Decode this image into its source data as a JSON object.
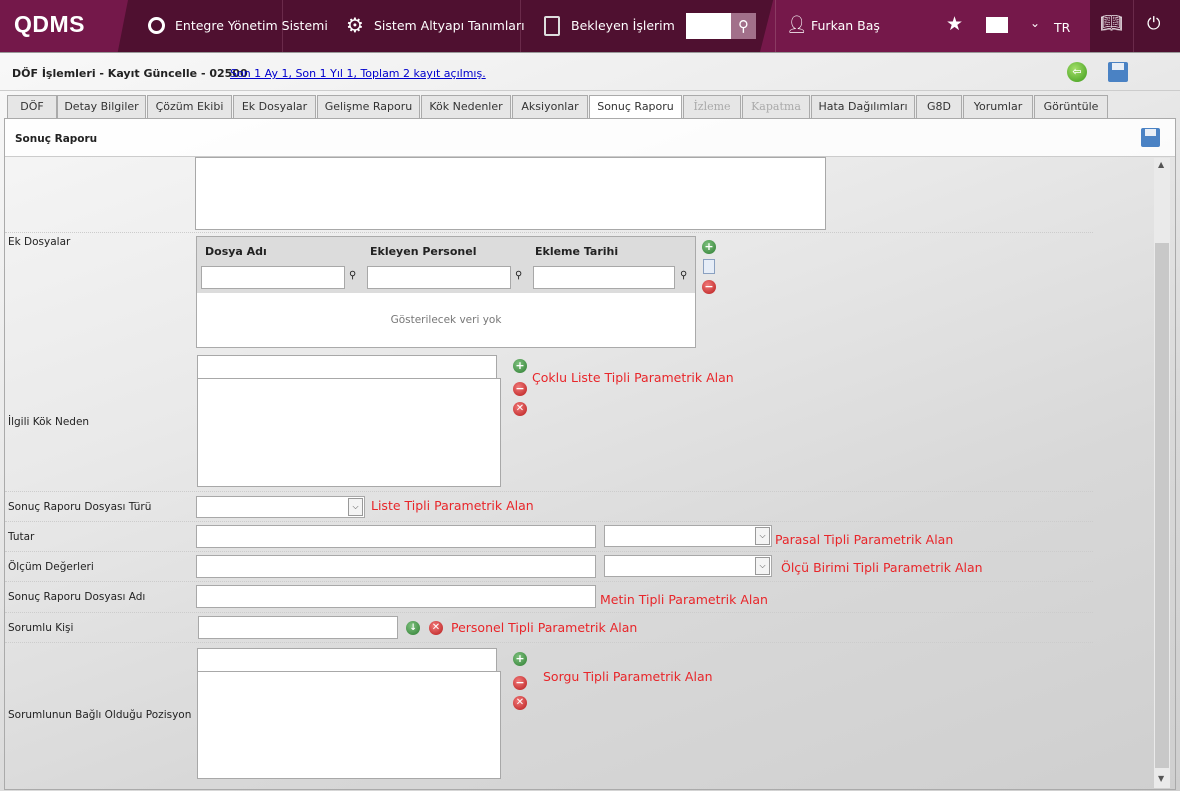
{
  "header": {
    "logo": "QDMS",
    "nav": [
      {
        "label": "Entegre Yönetim Sistemi",
        "icon": "q-icon"
      },
      {
        "label": "Sistem Altyapı Tanımları",
        "icon": "gear-icon"
      },
      {
        "label": "Bekleyen İşlerim",
        "icon": "clipboard-icon"
      }
    ],
    "search_value": "",
    "user": "Furkan Baş",
    "language": "TR"
  },
  "titlebar": {
    "title": "DÖF İşlemleri - Kayıt Güncelle - 02500",
    "stats_link": "Son 1 Ay 1, Son 1 Yıl 1, Toplam 2 kayıt açılmış."
  },
  "tabs": [
    {
      "label": "DÖF"
    },
    {
      "label": "Detay Bilgiler"
    },
    {
      "label": "Çözüm Ekibi"
    },
    {
      "label": "Ek Dosyalar"
    },
    {
      "label": "Gelişme Raporu"
    },
    {
      "label": "Kök Nedenler"
    },
    {
      "label": "Aksiyonlar"
    },
    {
      "label": "Sonuç Raporu",
      "active": true
    },
    {
      "label": "İzleme",
      "disabled": true
    },
    {
      "label": "Kapatma",
      "disabled": true
    },
    {
      "label": "Hata Dağılımları"
    },
    {
      "label": "G8D"
    },
    {
      "label": "Yorumlar"
    },
    {
      "label": "Görüntüle"
    }
  ],
  "panel": {
    "title": "Sonuç Raporu"
  },
  "form": {
    "ek_dosyalar": {
      "label": "Ek Dosyalar",
      "columns": [
        "Dosya Adı",
        "Ekleyen Personel",
        "Ekleme Tarihi"
      ],
      "empty_text": "Gösterilecek veri yok"
    },
    "kok_neden": {
      "label": "İlgili Kök Neden",
      "note": "Çoklu Liste Tipli Parametrik Alan"
    },
    "dosya_turu": {
      "label": "Sonuç Raporu Dosyası Türü",
      "note": "Liste Tipli Parametrik Alan",
      "value": ""
    },
    "tutar": {
      "label": "Tutar",
      "note": "Parasal Tipli Parametrik Alan",
      "value": ""
    },
    "olcum": {
      "label": "Ölçüm Değerleri",
      "note": "Ölçü Birimi Tipli Parametrik Alan",
      "value": ""
    },
    "dosya_adi": {
      "label": "Sonuç Raporu Dosyası Adı",
      "note": "Metin Tipli Parametrik Alan",
      "value": ""
    },
    "sorumlu": {
      "label": "Sorumlu Kişi",
      "note": "Personel Tipli Parametrik Alan",
      "value": ""
    },
    "pozisyon": {
      "label": "Sorumlunun Bağlı Olduğu Pozisyon",
      "note": "Sorgu Tipli Parametrik Alan"
    }
  },
  "colors": {
    "header_dark": "#4f1030",
    "header_accent": "#75184a",
    "note_red": "#e8262a",
    "link": "#0000cc"
  }
}
